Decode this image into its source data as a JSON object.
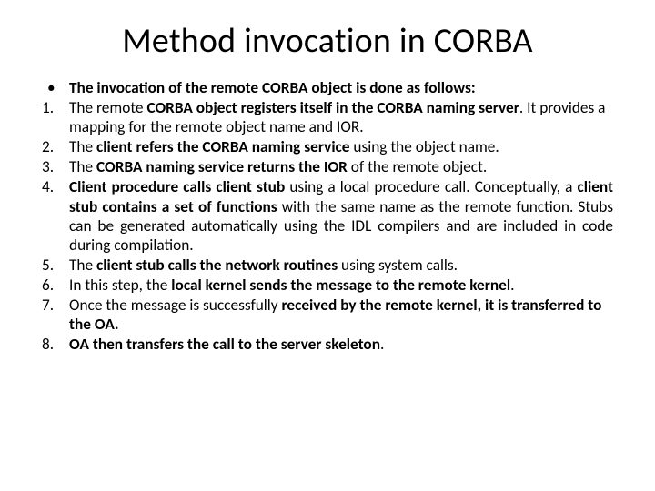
{
  "title": "Method invocation in CORBA",
  "intro_bullet": "•",
  "intro_parts": [
    {
      "t": "The invocation of the remote CORBA object is done as follows:",
      "b": true
    }
  ],
  "items": [
    {
      "num": "1.",
      "justify": false,
      "parts": [
        {
          "t": "The remote ",
          "b": false
        },
        {
          "t": "CORBA object registers itself in the CORBA naming server",
          "b": true
        },
        {
          "t": ". It provides a mapping for the remote object name and IOR.",
          "b": false
        }
      ]
    },
    {
      "num": "2.",
      "justify": false,
      "parts": [
        {
          "t": " The ",
          "b": false
        },
        {
          "t": "client refers the CORBA naming service",
          "b": true
        },
        {
          "t": " using the object name.",
          "b": false
        }
      ]
    },
    {
      "num": "3.",
      "justify": false,
      "parts": [
        {
          "t": " The ",
          "b": false
        },
        {
          "t": "CORBA naming service returns the IOR",
          "b": true
        },
        {
          "t": " of the remote object.",
          "b": false
        }
      ]
    },
    {
      "num": "4.",
      "justify": true,
      "parts": [
        {
          "t": "Client procedure calls client stub",
          "b": true
        },
        {
          "t": " using a local procedure call. Conceptually, a ",
          "b": false
        },
        {
          "t": "client stub contains a set of functions",
          "b": true
        },
        {
          "t": " with the same name as the remote function. Stubs can be generated automatically using the IDL compilers and are included in code during compilation.",
          "b": false
        }
      ]
    },
    {
      "num": "5.",
      "justify": false,
      "parts": [
        {
          "t": "The ",
          "b": false
        },
        {
          "t": "client stub calls the network routines",
          "b": true
        },
        {
          "t": " using system calls.",
          "b": false
        }
      ]
    },
    {
      "num": "6.",
      "justify": false,
      "parts": [
        {
          "t": "In this step, the ",
          "b": false
        },
        {
          "t": "local kernel sends the message to the remote kernel",
          "b": true
        },
        {
          "t": ".",
          "b": false
        }
      ]
    },
    {
      "num": "7.",
      "justify": false,
      "parts": [
        {
          "t": " Once the message is successfully ",
          "b": false
        },
        {
          "t": "received by the remote kernel, it is transferred to the OA.",
          "b": true
        }
      ]
    },
    {
      "num": "8.",
      "justify": false,
      "parts": [
        {
          "t": " ",
          "b": false
        },
        {
          "t": "OA then transfers the call to the server skeleton",
          "b": true
        },
        {
          "t": ".",
          "b": false
        }
      ]
    }
  ]
}
